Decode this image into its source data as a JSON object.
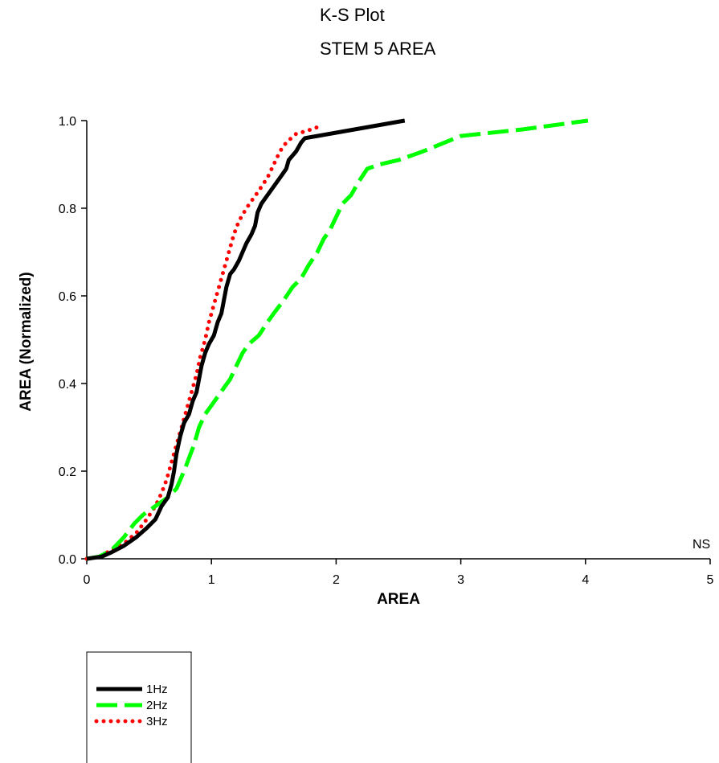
{
  "chart_data": {
    "type": "line",
    "title": "K-S Plot",
    "subtitle": "STEM 5 AREA",
    "xlabel": "AREA",
    "ylabel": "AREA (Normalized)",
    "xlim": [
      0,
      5
    ],
    "ylim": [
      0,
      1
    ],
    "x_ticks": [
      "0",
      "1",
      "2",
      "3",
      "4",
      "5"
    ],
    "y_ticks": [
      "0.0",
      "0.2",
      "0.4",
      "0.6",
      "0.8",
      "1.0"
    ],
    "grid": false,
    "legend_position": "bottom-left",
    "annotation": "NS",
    "series": [
      {
        "name": "1Hz",
        "color": "#000000",
        "style": "solid",
        "points": [
          [
            0.0,
            0.0
          ],
          [
            0.12,
            0.005
          ],
          [
            0.2,
            0.015
          ],
          [
            0.3,
            0.03
          ],
          [
            0.4,
            0.05
          ],
          [
            0.48,
            0.07
          ],
          [
            0.55,
            0.09
          ],
          [
            0.6,
            0.12
          ],
          [
            0.65,
            0.14
          ],
          [
            0.68,
            0.17
          ],
          [
            0.7,
            0.2
          ],
          [
            0.72,
            0.24
          ],
          [
            0.75,
            0.28
          ],
          [
            0.78,
            0.31
          ],
          [
            0.82,
            0.33
          ],
          [
            0.85,
            0.36
          ],
          [
            0.88,
            0.38
          ],
          [
            0.9,
            0.41
          ],
          [
            0.92,
            0.44
          ],
          [
            0.95,
            0.47
          ],
          [
            0.98,
            0.49
          ],
          [
            1.02,
            0.51
          ],
          [
            1.05,
            0.54
          ],
          [
            1.08,
            0.56
          ],
          [
            1.1,
            0.59
          ],
          [
            1.12,
            0.62
          ],
          [
            1.15,
            0.65
          ],
          [
            1.18,
            0.66
          ],
          [
            1.22,
            0.68
          ],
          [
            1.25,
            0.7
          ],
          [
            1.28,
            0.72
          ],
          [
            1.32,
            0.74
          ],
          [
            1.35,
            0.76
          ],
          [
            1.37,
            0.79
          ],
          [
            1.4,
            0.81
          ],
          [
            1.45,
            0.83
          ],
          [
            1.5,
            0.85
          ],
          [
            1.55,
            0.87
          ],
          [
            1.6,
            0.89
          ],
          [
            1.62,
            0.91
          ],
          [
            1.68,
            0.93
          ],
          [
            1.72,
            0.95
          ],
          [
            1.75,
            0.96
          ],
          [
            1.85,
            0.965
          ],
          [
            2.55,
            1.0
          ]
        ]
      },
      {
        "name": "2Hz",
        "color": "#00ff00",
        "style": "dashed",
        "points": [
          [
            0.0,
            0.0
          ],
          [
            0.1,
            0.005
          ],
          [
            0.2,
            0.02
          ],
          [
            0.3,
            0.05
          ],
          [
            0.38,
            0.08
          ],
          [
            0.45,
            0.1
          ],
          [
            0.55,
            0.12
          ],
          [
            0.65,
            0.14
          ],
          [
            0.72,
            0.16
          ],
          [
            0.78,
            0.2
          ],
          [
            0.82,
            0.23
          ],
          [
            0.86,
            0.26
          ],
          [
            0.9,
            0.3
          ],
          [
            0.95,
            0.33
          ],
          [
            1.0,
            0.35
          ],
          [
            1.05,
            0.37
          ],
          [
            1.1,
            0.39
          ],
          [
            1.15,
            0.41
          ],
          [
            1.2,
            0.44
          ],
          [
            1.25,
            0.47
          ],
          [
            1.3,
            0.49
          ],
          [
            1.38,
            0.51
          ],
          [
            1.45,
            0.54
          ],
          [
            1.5,
            0.56
          ],
          [
            1.58,
            0.59
          ],
          [
            1.65,
            0.62
          ],
          [
            1.72,
            0.64
          ],
          [
            1.78,
            0.67
          ],
          [
            1.85,
            0.7
          ],
          [
            1.9,
            0.73
          ],
          [
            1.95,
            0.75
          ],
          [
            2.0,
            0.78
          ],
          [
            2.05,
            0.81
          ],
          [
            2.12,
            0.83
          ],
          [
            2.18,
            0.86
          ],
          [
            2.25,
            0.89
          ],
          [
            2.35,
            0.9
          ],
          [
            2.5,
            0.91
          ],
          [
            2.7,
            0.93
          ],
          [
            3.0,
            0.965
          ],
          [
            3.5,
            0.98
          ],
          [
            4.02,
            1.0
          ]
        ]
      },
      {
        "name": "3Hz",
        "color": "#ff0000",
        "style": "dotted",
        "points": [
          [
            0.0,
            0.0
          ],
          [
            0.1,
            0.005
          ],
          [
            0.2,
            0.02
          ],
          [
            0.3,
            0.035
          ],
          [
            0.4,
            0.06
          ],
          [
            0.48,
            0.09
          ],
          [
            0.55,
            0.12
          ],
          [
            0.6,
            0.15
          ],
          [
            0.64,
            0.18
          ],
          [
            0.68,
            0.22
          ],
          [
            0.72,
            0.26
          ],
          [
            0.76,
            0.3
          ],
          [
            0.8,
            0.34
          ],
          [
            0.84,
            0.38
          ],
          [
            0.88,
            0.42
          ],
          [
            0.91,
            0.46
          ],
          [
            0.95,
            0.5
          ],
          [
            0.98,
            0.54
          ],
          [
            1.02,
            0.58
          ],
          [
            1.06,
            0.62
          ],
          [
            1.1,
            0.66
          ],
          [
            1.14,
            0.7
          ],
          [
            1.18,
            0.74
          ],
          [
            1.22,
            0.77
          ],
          [
            1.28,
            0.8
          ],
          [
            1.33,
            0.82
          ],
          [
            1.38,
            0.84
          ],
          [
            1.45,
            0.87
          ],
          [
            1.5,
            0.9
          ],
          [
            1.55,
            0.93
          ],
          [
            1.6,
            0.95
          ],
          [
            1.68,
            0.97
          ],
          [
            1.75,
            0.975
          ],
          [
            1.85,
            0.985
          ]
        ]
      }
    ]
  }
}
